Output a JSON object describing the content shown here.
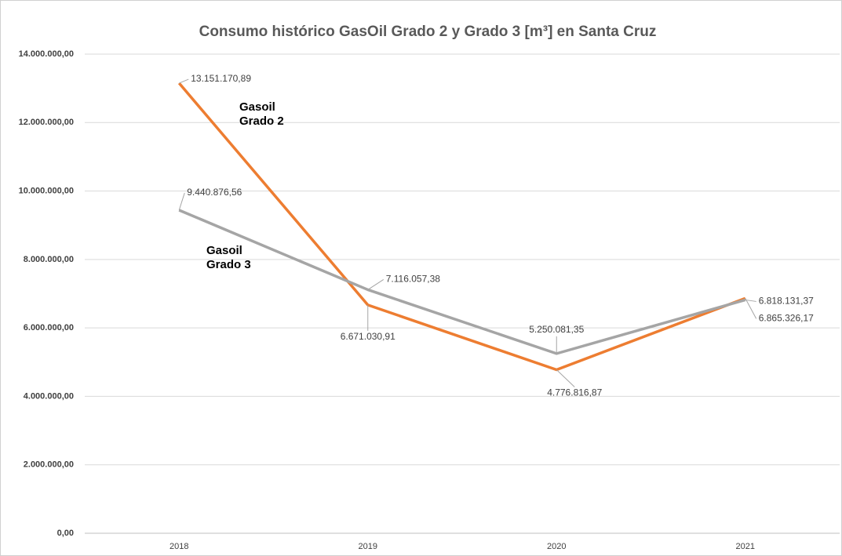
{
  "chart_data": {
    "type": "line",
    "title": "Consumo histórico GasOil Grado 2 y Grado 3 [m³] en Santa Cruz",
    "categories": [
      "2018",
      "2019",
      "2020",
      "2021"
    ],
    "series": [
      {
        "name": "Gasoil Grado 2",
        "color": "#ED7D31",
        "values": [
          13151170.89,
          6671030.91,
          4776816.87,
          6865326.17
        ],
        "value_labels": [
          "13.151.170,89",
          "6.671.030,91",
          "4.776.816,87",
          "6.865.326,17"
        ]
      },
      {
        "name": "Gasoil Grado 3",
        "color": "#A5A5A5",
        "values": [
          9440876.56,
          7116057.38,
          5250081.35,
          6818131.37
        ],
        "value_labels": [
          "9.440.876,56",
          "7.116.057,38",
          "5.250.081,35",
          "6.818.131,37"
        ]
      }
    ],
    "ylim": [
      0,
      14000000
    ],
    "yticks": [
      {
        "value": 0,
        "label": "0,00"
      },
      {
        "value": 2000000,
        "label": "2.000.000,00"
      },
      {
        "value": 4000000,
        "label": "4.000.000,00"
      },
      {
        "value": 6000000,
        "label": "6.000.000,00"
      },
      {
        "value": 8000000,
        "label": "8.000.000,00"
      },
      {
        "value": 10000000,
        "label": "10.000.000,00"
      },
      {
        "value": 12000000,
        "label": "12.000.000,00"
      },
      {
        "value": 14000000,
        "label": "14.000.000,00"
      }
    ],
    "grid": true
  }
}
